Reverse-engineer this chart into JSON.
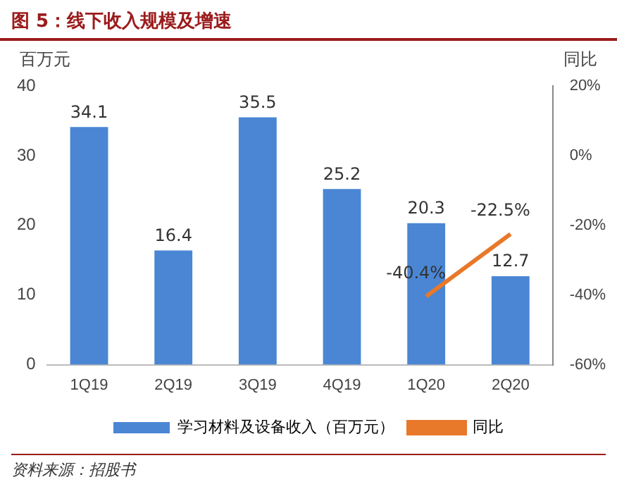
{
  "chart_data": {
    "type": "bar",
    "title": "图 5：线下收入规模及增速",
    "ylabel": "百万元",
    "y2label": "同比",
    "categories": [
      "1Q19",
      "2Q19",
      "3Q19",
      "4Q19",
      "1Q20",
      "2Q20"
    ],
    "series": [
      {
        "name": "学习材料及设备收入（百万元）",
        "color": "#4a86d4",
        "values": [
          34.1,
          16.4,
          35.5,
          25.2,
          20.3,
          12.7
        ],
        "value_labels": [
          "34.1",
          "16.4",
          "35.5",
          "25.2",
          "20.3",
          "12.7"
        ]
      },
      {
        "name": "同比",
        "type": "line",
        "axis": "y2",
        "color": "#e8782a",
        "values": [
          null,
          null,
          null,
          null,
          -40.4,
          -22.5
        ],
        "value_labels": [
          null,
          null,
          null,
          null,
          "-40.4%",
          "-22.5%"
        ]
      }
    ],
    "ylim": [
      0,
      40
    ],
    "yticks": [
      0,
      10,
      20,
      30,
      40
    ],
    "y2lim": [
      -60,
      20
    ],
    "y2ticks": [
      {
        "value": -60,
        "label": "-60%"
      },
      {
        "value": -40,
        "label": "-40%"
      },
      {
        "value": -20,
        "label": "-20%"
      },
      {
        "value": 0,
        "label": "0%"
      },
      {
        "value": 20,
        "label": "20%"
      }
    ],
    "legend": "bottom",
    "marker": "none",
    "line_style": "solid",
    "annotations": [
      "资料来源：招股书"
    ]
  }
}
